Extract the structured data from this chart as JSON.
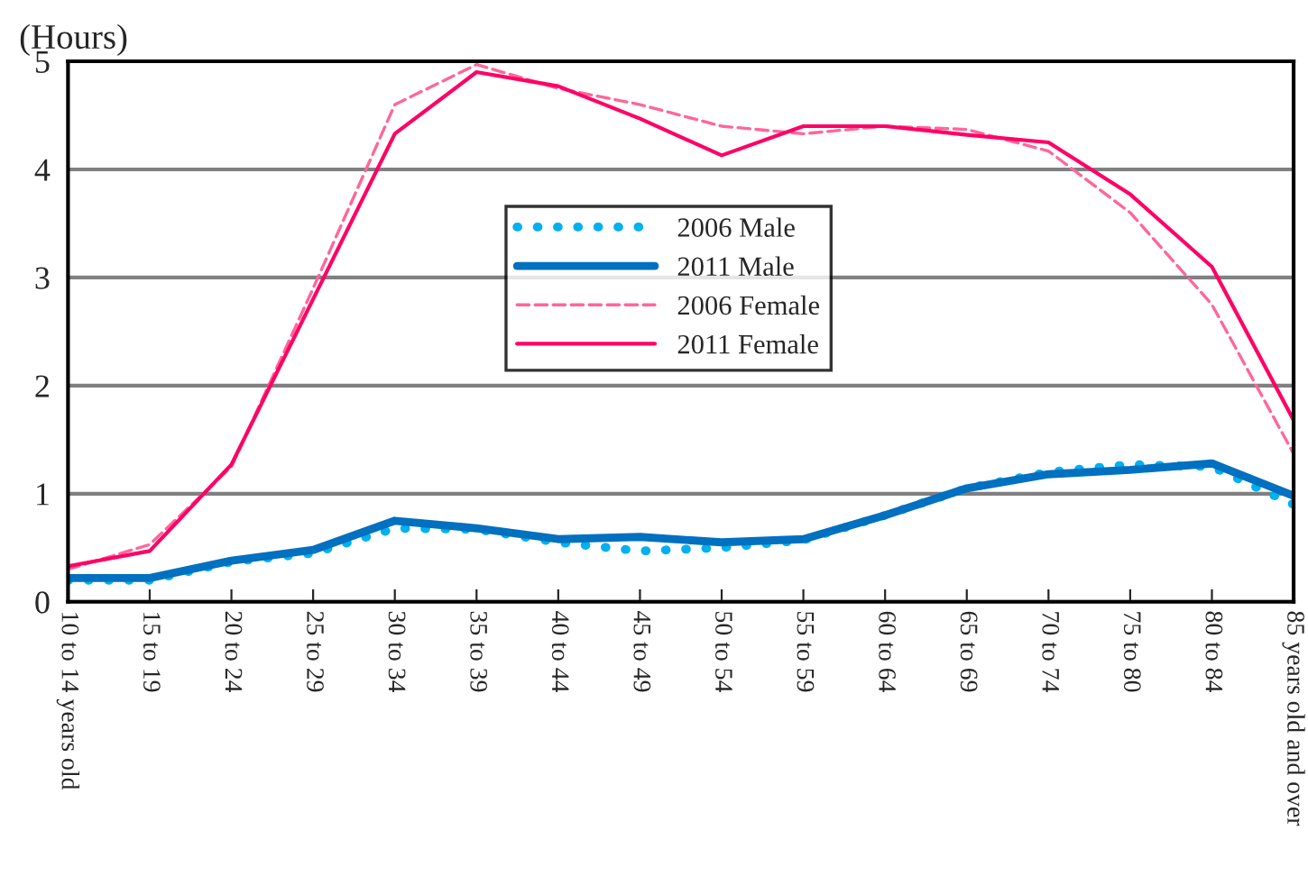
{
  "chart_data": {
    "type": "line",
    "ylabel": "(Hours)",
    "categories": [
      "10 to 14 years old",
      "15 to 19",
      "20 to 24",
      "25 to 29",
      "30 to 34",
      "35 to 39",
      "40 to 44",
      "45 to 49",
      "50 to 54",
      "55 to 59",
      "60 to 64",
      "65 to 69",
      "70 to 74",
      "75 to 80",
      "80 to 84",
      "85 years old and over"
    ],
    "series": [
      {
        "name": "2006 Male",
        "color": "#00b0f0",
        "line_style": "dotted",
        "values": [
          0.2,
          0.2,
          0.37,
          0.45,
          0.68,
          0.67,
          0.55,
          0.47,
          0.5,
          0.57,
          0.8,
          1.05,
          1.2,
          1.27,
          1.25,
          0.9
        ]
      },
      {
        "name": "2011 Male",
        "color": "#0070c0",
        "line_style": "solid",
        "values": [
          0.22,
          0.22,
          0.38,
          0.48,
          0.75,
          0.68,
          0.58,
          0.6,
          0.55,
          0.58,
          0.8,
          1.05,
          1.18,
          1.22,
          1.28,
          0.98
        ]
      },
      {
        "name": "2006 Female",
        "color": "#ff6699",
        "line_style": "dashed",
        "values": [
          0.3,
          0.53,
          1.25,
          2.9,
          4.6,
          4.97,
          4.75,
          4.6,
          4.4,
          4.33,
          4.4,
          4.37,
          4.17,
          3.6,
          2.75,
          1.37
        ]
      },
      {
        "name": "2011 Female",
        "color": "#ff0066",
        "line_style": "solid",
        "values": [
          0.33,
          0.47,
          1.27,
          2.8,
          4.33,
          4.9,
          4.77,
          4.47,
          4.13,
          4.4,
          4.4,
          4.32,
          4.25,
          3.77,
          3.1,
          1.68
        ]
      }
    ],
    "ylim": [
      0,
      5
    ],
    "yticks": [
      0,
      1,
      2,
      3,
      4,
      5
    ],
    "grid": "y",
    "legend": "center"
  }
}
